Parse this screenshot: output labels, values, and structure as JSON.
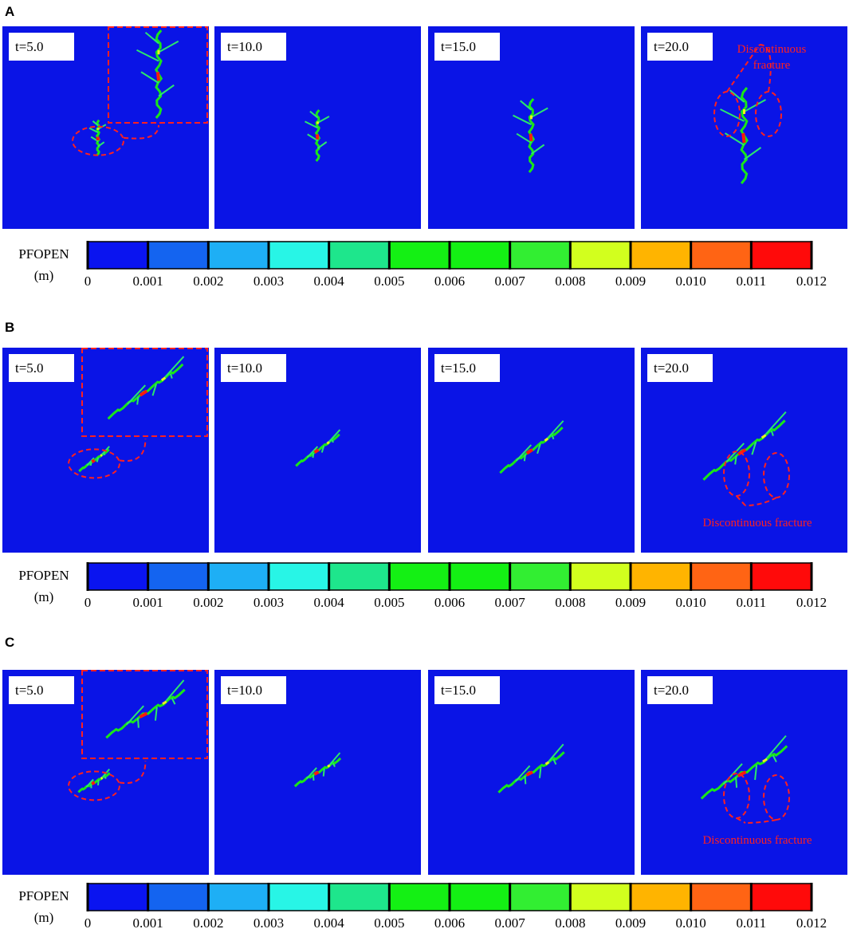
{
  "figure": {
    "rows": [
      {
        "label": "A",
        "panels": [
          {
            "time": "t=5.0"
          },
          {
            "time": "t=10.0"
          },
          {
            "time": "t=15.0"
          },
          {
            "time": "t=20.0"
          }
        ],
        "annotation": [
          "Discontinuous",
          "fracture"
        ],
        "colorbar": {
          "label": "PFOPEN",
          "unit": "(m)",
          "ticks": [
            "0",
            "0.001",
            "0.002",
            "0.003",
            "0.004",
            "0.005",
            "0.006",
            "0.007",
            "0.008",
            "0.009",
            "0.010",
            "0.011",
            "0.012"
          ]
        }
      },
      {
        "label": "B",
        "panels": [
          {
            "time": "t=5.0"
          },
          {
            "time": "t=10.0"
          },
          {
            "time": "t=15.0"
          },
          {
            "time": "t=20.0"
          }
        ],
        "annotation": [
          "Discontinuous fracture"
        ],
        "colorbar": {
          "label": "PFOPEN",
          "unit": "(m)",
          "ticks": [
            "0",
            "0.001",
            "0.002",
            "0.003",
            "0.004",
            "0.005",
            "0.006",
            "0.007",
            "0.008",
            "0.009",
            "0.010",
            "0.011",
            "0.012"
          ]
        }
      },
      {
        "label": "C",
        "panels": [
          {
            "time": "t=5.0"
          },
          {
            "time": "t=10.0"
          },
          {
            "time": "t=15.0"
          },
          {
            "time": "t=20.0"
          }
        ],
        "annotation": [
          "Discontinuous fracture"
        ],
        "colorbar": {
          "label": "PFOPEN",
          "unit": "(m)",
          "ticks": [
            "0",
            "0.001",
            "0.002",
            "0.003",
            "0.004",
            "0.005",
            "0.006",
            "0.007",
            "0.008",
            "0.009",
            "0.010",
            "0.011",
            "0.012"
          ]
        }
      }
    ],
    "colorbar_colors": [
      "#0a14f0",
      "#1464f0",
      "#1eaff5",
      "#28f5e6",
      "#1ee68c",
      "#14f014",
      "#14f014",
      "#32ee32",
      "#d2ff1e",
      "#ffb400",
      "#ff6414",
      "#ff0a0a"
    ],
    "background_color": "#0a14e6"
  }
}
